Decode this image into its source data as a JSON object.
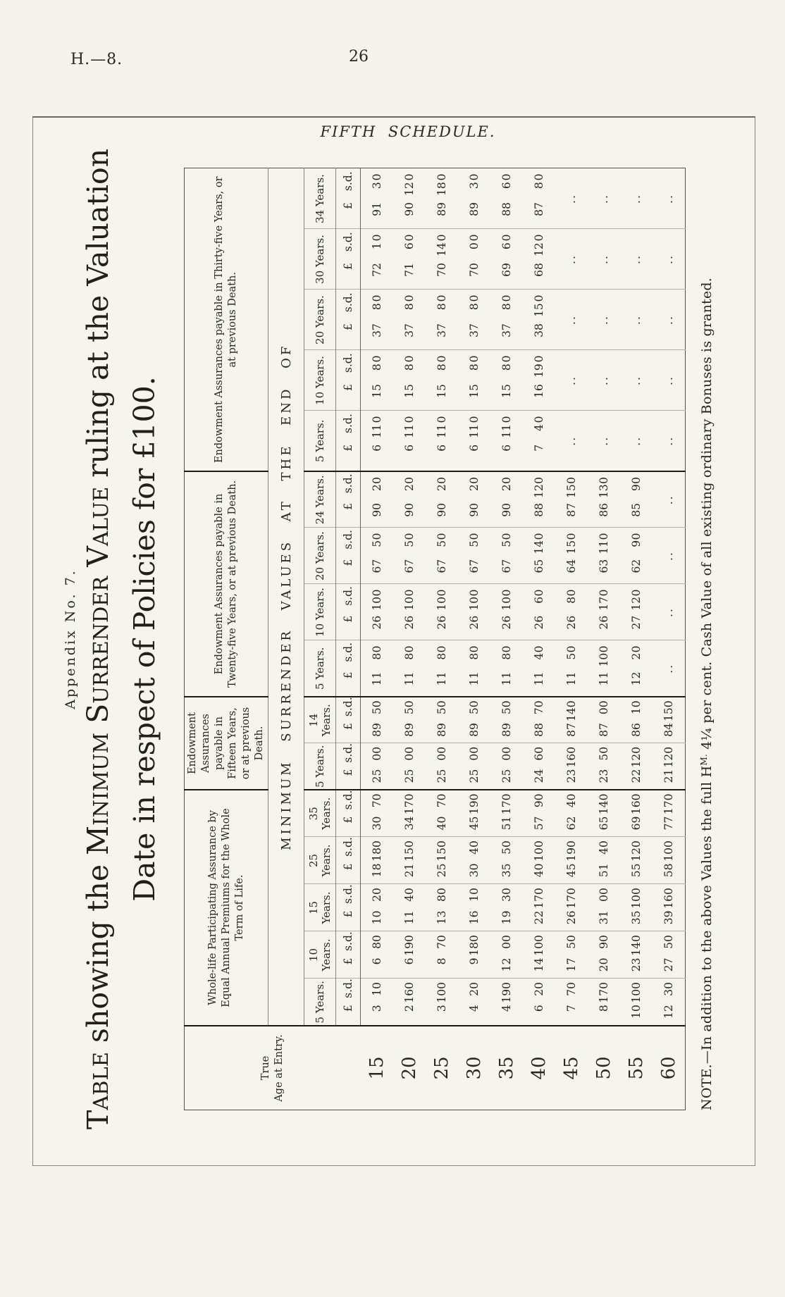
{
  "page": {
    "doc_ref": "H.—8.",
    "page_number": "26",
    "schedule_heading": "FIFTH SCHEDULE.",
    "appendix": "Appendix No. 7."
  },
  "title": {
    "line1": [
      {
        "text": "Table",
        "sc": true
      },
      {
        "text": " showing the ",
        "sc": false
      },
      {
        "text": "Minimum Surrender Value",
        "sc": true
      },
      {
        "text": " ruling at the Valuation",
        "sc": false
      }
    ],
    "line2": [
      {
        "text": "Date in respect of Policies for £100.",
        "sc": false
      }
    ]
  },
  "note": {
    "part1": "NOTE.—In addition to the above Values the full H",
    "sup": "M.",
    "part2": " 4¼ per cent. Cash Value of all existing ordinary Bonuses is granted."
  },
  "table": {
    "stub_line1": "True",
    "stub_line2": "Age at Entry.",
    "span_header": "MINIMUM SURRENDER VALUES AT THE END OF",
    "money_header": {
      "pound": "£",
      "shilling": "s.",
      "pence": "d."
    },
    "ditto_mark": "..",
    "groups": [
      {
        "title": "Whole-life Participating Assurance by Equal Annual Premiums for the Whole Term of Life.",
        "columns": [
          "5 Years.",
          "10 Years.",
          "15 Years.",
          "25 Years.",
          "35 Years."
        ]
      },
      {
        "title": "Endowment Assurances payable in Fifteen Years, or at previous Death.",
        "columns": [
          "5 Years.",
          "14 Years."
        ]
      },
      {
        "title": "Endowment Assurances payable in Twenty-five Years, or at previous Death.",
        "columns": [
          "5 Years.",
          "10 Years.",
          "20 Years.",
          "24 Years."
        ]
      },
      {
        "title": "Endowment Assurances payable in Thirty-five Years, or at previous Death.",
        "columns": [
          "5 Years.",
          "10 Years.",
          "20 Years.",
          "30 Years.",
          "34 Years."
        ]
      }
    ],
    "rows": [
      {
        "age": "15",
        "values": [
          [
            3,
            1,
            0
          ],
          [
            6,
            8,
            0
          ],
          [
            10,
            2,
            0
          ],
          [
            18,
            18,
            0
          ],
          [
            30,
            7,
            0
          ],
          [
            25,
            0,
            0
          ],
          [
            89,
            5,
            0
          ],
          [
            11,
            8,
            0
          ],
          [
            26,
            10,
            0
          ],
          [
            67,
            5,
            0
          ],
          [
            90,
            2,
            0
          ],
          [
            6,
            11,
            0
          ],
          [
            15,
            8,
            0
          ],
          [
            37,
            8,
            0
          ],
          [
            72,
            1,
            0
          ],
          [
            91,
            3,
            0
          ]
        ]
      },
      {
        "age": "20",
        "values": [
          [
            2,
            16,
            0
          ],
          [
            6,
            19,
            0
          ],
          [
            11,
            4,
            0
          ],
          [
            21,
            15,
            0
          ],
          [
            34,
            17,
            0
          ],
          [
            25,
            0,
            0
          ],
          [
            89,
            5,
            0
          ],
          [
            11,
            8,
            0
          ],
          [
            26,
            10,
            0
          ],
          [
            67,
            5,
            0
          ],
          [
            90,
            2,
            0
          ],
          [
            6,
            11,
            0
          ],
          [
            15,
            8,
            0
          ],
          [
            37,
            8,
            0
          ],
          [
            71,
            6,
            0
          ],
          [
            90,
            12,
            0
          ]
        ]
      },
      {
        "age": "25",
        "values": [
          [
            3,
            10,
            0
          ],
          [
            8,
            7,
            0
          ],
          [
            13,
            8,
            0
          ],
          [
            25,
            15,
            0
          ],
          [
            40,
            7,
            0
          ],
          [
            25,
            0,
            0
          ],
          [
            89,
            5,
            0
          ],
          [
            11,
            8,
            0
          ],
          [
            26,
            10,
            0
          ],
          [
            67,
            5,
            0
          ],
          [
            90,
            2,
            0
          ],
          [
            6,
            11,
            0
          ],
          [
            15,
            8,
            0
          ],
          [
            37,
            8,
            0
          ],
          [
            70,
            14,
            0
          ],
          [
            89,
            18,
            0
          ]
        ]
      },
      {
        "age": "30",
        "values": [
          [
            4,
            2,
            0
          ],
          [
            9,
            18,
            0
          ],
          [
            16,
            1,
            0
          ],
          [
            30,
            4,
            0
          ],
          [
            45,
            19,
            0
          ],
          [
            25,
            0,
            0
          ],
          [
            89,
            5,
            0
          ],
          [
            11,
            8,
            0
          ],
          [
            26,
            10,
            0
          ],
          [
            67,
            5,
            0
          ],
          [
            90,
            2,
            0
          ],
          [
            6,
            11,
            0
          ],
          [
            15,
            8,
            0
          ],
          [
            37,
            8,
            0
          ],
          [
            70,
            0,
            0
          ],
          [
            89,
            3,
            0
          ]
        ]
      },
      {
        "age": "35",
        "values": [
          [
            4,
            19,
            0
          ],
          [
            12,
            0,
            0
          ],
          [
            19,
            3,
            0
          ],
          [
            35,
            5,
            0
          ],
          [
            51,
            17,
            0
          ],
          [
            25,
            0,
            0
          ],
          [
            89,
            5,
            0
          ],
          [
            11,
            8,
            0
          ],
          [
            26,
            10,
            0
          ],
          [
            67,
            5,
            0
          ],
          [
            90,
            2,
            0
          ],
          [
            6,
            11,
            0
          ],
          [
            15,
            8,
            0
          ],
          [
            37,
            8,
            0
          ],
          [
            69,
            6,
            0
          ],
          [
            88,
            6,
            0
          ]
        ]
      },
      {
        "age": "40",
        "values": [
          [
            6,
            2,
            0
          ],
          [
            14,
            10,
            0
          ],
          [
            22,
            17,
            0
          ],
          [
            40,
            10,
            0
          ],
          [
            57,
            9,
            0
          ],
          [
            24,
            6,
            0
          ],
          [
            88,
            7,
            0
          ],
          [
            11,
            4,
            0
          ],
          [
            26,
            6,
            0
          ],
          [
            65,
            14,
            0
          ],
          [
            88,
            12,
            0
          ],
          [
            7,
            4,
            0
          ],
          [
            16,
            19,
            0
          ],
          [
            38,
            15,
            0
          ],
          [
            68,
            12,
            0
          ],
          [
            87,
            8,
            0
          ]
        ]
      },
      {
        "age": "45",
        "values": [
          [
            7,
            7,
            0
          ],
          [
            17,
            5,
            0
          ],
          [
            26,
            17,
            0
          ],
          [
            45,
            19,
            0
          ],
          [
            62,
            4,
            0
          ],
          [
            23,
            16,
            0
          ],
          [
            87,
            14,
            0
          ],
          [
            11,
            5,
            0
          ],
          [
            26,
            8,
            0
          ],
          [
            64,
            15,
            0
          ],
          [
            87,
            15,
            0
          ],
          null,
          null,
          null,
          null,
          null
        ]
      },
      {
        "age": "50",
        "values": [
          [
            8,
            17,
            0
          ],
          [
            20,
            9,
            0
          ],
          [
            31,
            0,
            0
          ],
          [
            51,
            4,
            0
          ],
          [
            65,
            14,
            0
          ],
          [
            23,
            5,
            0
          ],
          [
            87,
            0,
            0
          ],
          [
            11,
            10,
            0
          ],
          [
            26,
            17,
            0
          ],
          [
            63,
            11,
            0
          ],
          [
            86,
            13,
            0
          ],
          null,
          null,
          null,
          null,
          null
        ]
      },
      {
        "age": "55",
        "values": [
          [
            10,
            10,
            0
          ],
          [
            23,
            14,
            0
          ],
          [
            35,
            10,
            0
          ],
          [
            55,
            12,
            0
          ],
          [
            69,
            16,
            0
          ],
          [
            22,
            12,
            0
          ],
          [
            86,
            1,
            0
          ],
          [
            12,
            2,
            0
          ],
          [
            27,
            12,
            0
          ],
          [
            62,
            9,
            0
          ],
          [
            85,
            9,
            0
          ],
          null,
          null,
          null,
          null,
          null
        ]
      },
      {
        "age": "60",
        "values": [
          [
            12,
            3,
            0
          ],
          [
            27,
            5,
            0
          ],
          [
            39,
            16,
            0
          ],
          [
            58,
            10,
            0
          ],
          [
            77,
            17,
            0
          ],
          [
            21,
            12,
            0
          ],
          [
            84,
            15,
            0
          ],
          null,
          null,
          null,
          null,
          null,
          null,
          null,
          null,
          null
        ]
      }
    ]
  }
}
